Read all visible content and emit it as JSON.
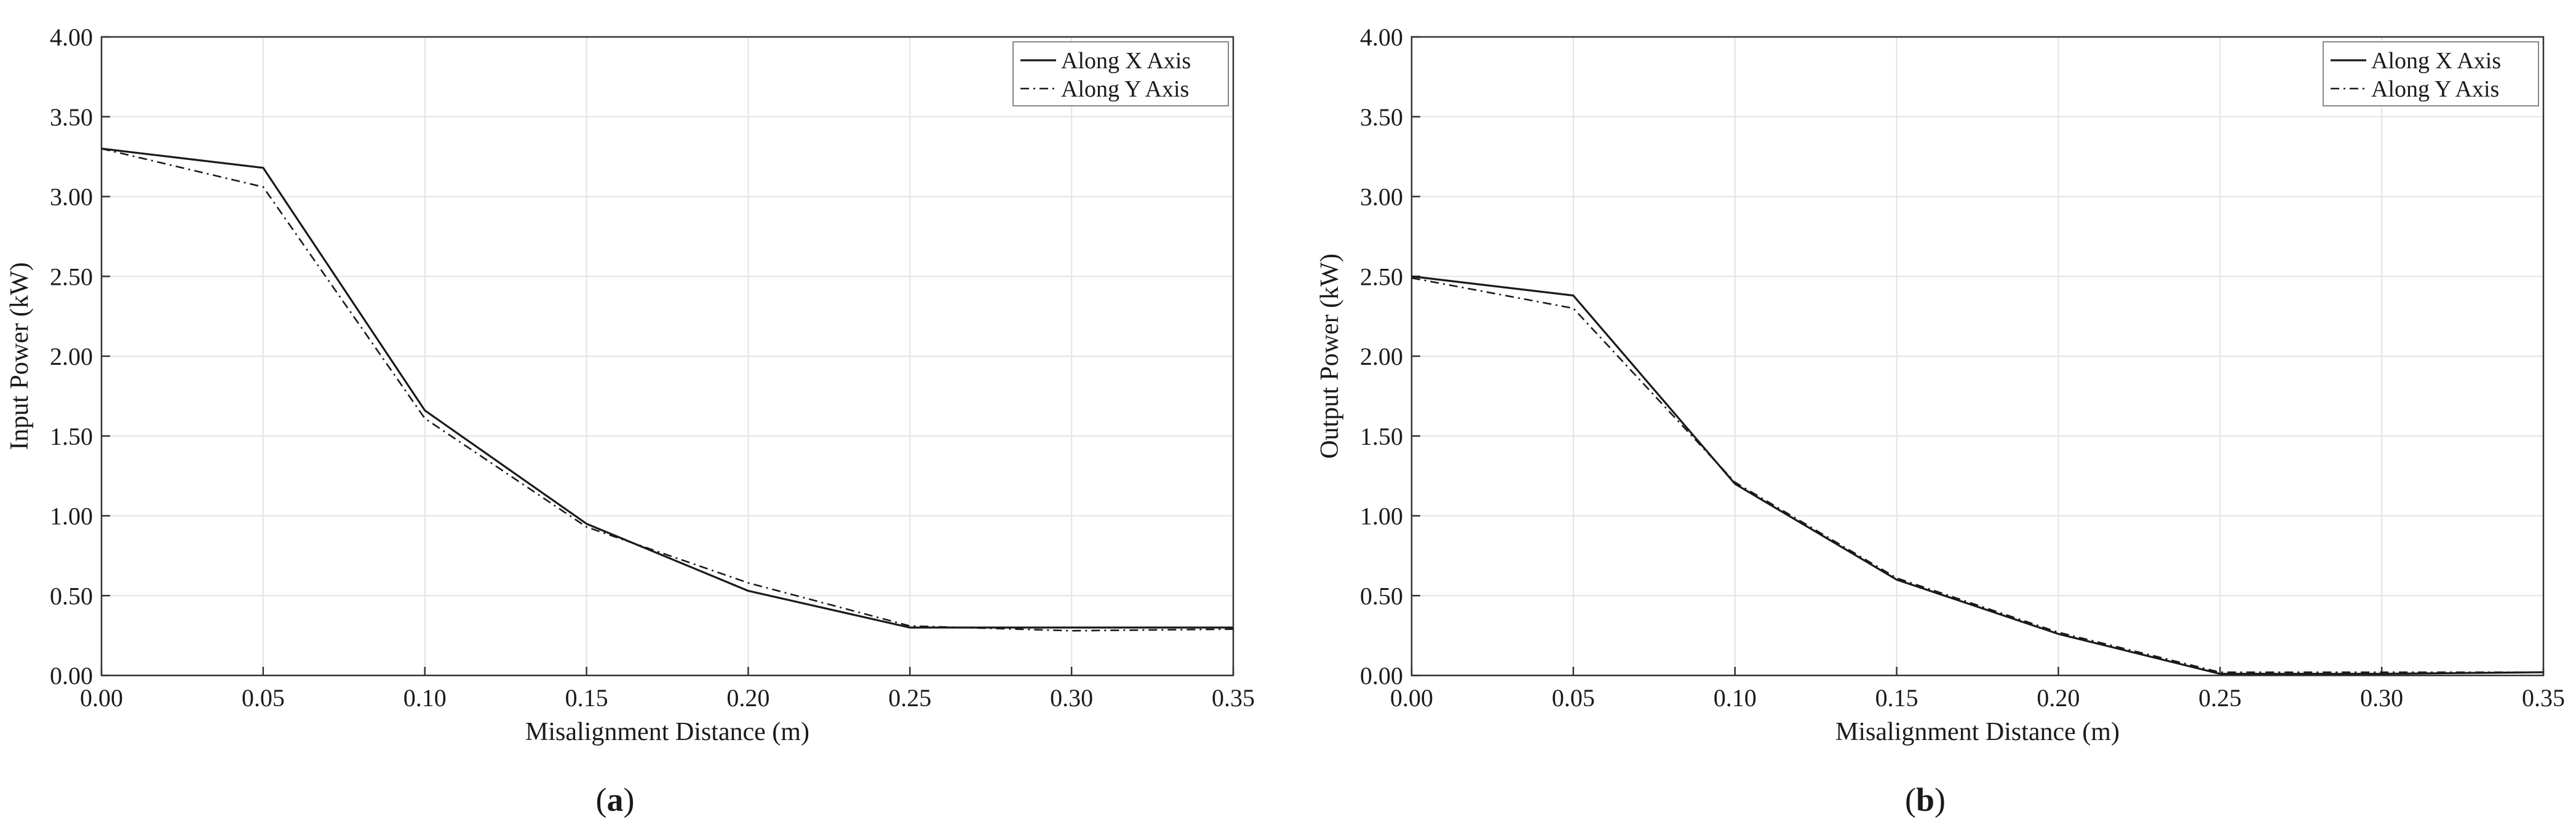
{
  "chart_data": [
    {
      "type": "line",
      "panel_label": "(a)",
      "panel_letter": "a",
      "xlabel": "Misalignment Distance (m)",
      "ylabel": "Input Power (kW)",
      "xlim": [
        0,
        0.35
      ],
      "ylim": [
        0,
        4
      ],
      "x_ticks": [
        "0.00",
        "0.05",
        "0.10",
        "0.15",
        "0.20",
        "0.25",
        "0.30",
        "0.35"
      ],
      "y_ticks": [
        "0.00",
        "0.50",
        "1.00",
        "1.50",
        "2.00",
        "2.50",
        "3.00",
        "3.50",
        "4.00"
      ],
      "grid": true,
      "legend_position": "top-right",
      "x": [
        0.0,
        0.05,
        0.1,
        0.15,
        0.2,
        0.25,
        0.3,
        0.35
      ],
      "series": [
        {
          "name": "Along X Axis",
          "style": "solid",
          "values": [
            3.3,
            3.18,
            1.66,
            0.95,
            0.53,
            0.3,
            0.3,
            0.3
          ]
        },
        {
          "name": "Along Y Axis",
          "style": "dashdot",
          "values": [
            3.3,
            3.06,
            1.61,
            0.93,
            0.58,
            0.31,
            0.28,
            0.29
          ]
        }
      ]
    },
    {
      "type": "line",
      "panel_label": "(b)",
      "panel_letter": "b",
      "xlabel": "Misalignment Distance (m)",
      "ylabel": "Output Power (kW)",
      "xlim": [
        0,
        0.35
      ],
      "ylim": [
        0,
        4
      ],
      "x_ticks": [
        "0.00",
        "0.05",
        "0.10",
        "0.15",
        "0.20",
        "0.25",
        "0.30",
        "0.35"
      ],
      "y_ticks": [
        "0.00",
        "0.50",
        "1.00",
        "1.50",
        "2.00",
        "2.50",
        "3.00",
        "3.50",
        "4.00"
      ],
      "grid": true,
      "legend_position": "top-right",
      "x": [
        0.0,
        0.05,
        0.1,
        0.15,
        0.2,
        0.25,
        0.3,
        0.35
      ],
      "series": [
        {
          "name": "Along X Axis",
          "style": "solid",
          "values": [
            2.5,
            2.38,
            1.2,
            0.6,
            0.26,
            0.01,
            0.01,
            0.02
          ]
        },
        {
          "name": "Along Y Axis",
          "style": "dashdot",
          "values": [
            2.49,
            2.3,
            1.21,
            0.61,
            0.27,
            0.02,
            0.02,
            0.02
          ]
        }
      ]
    }
  ]
}
